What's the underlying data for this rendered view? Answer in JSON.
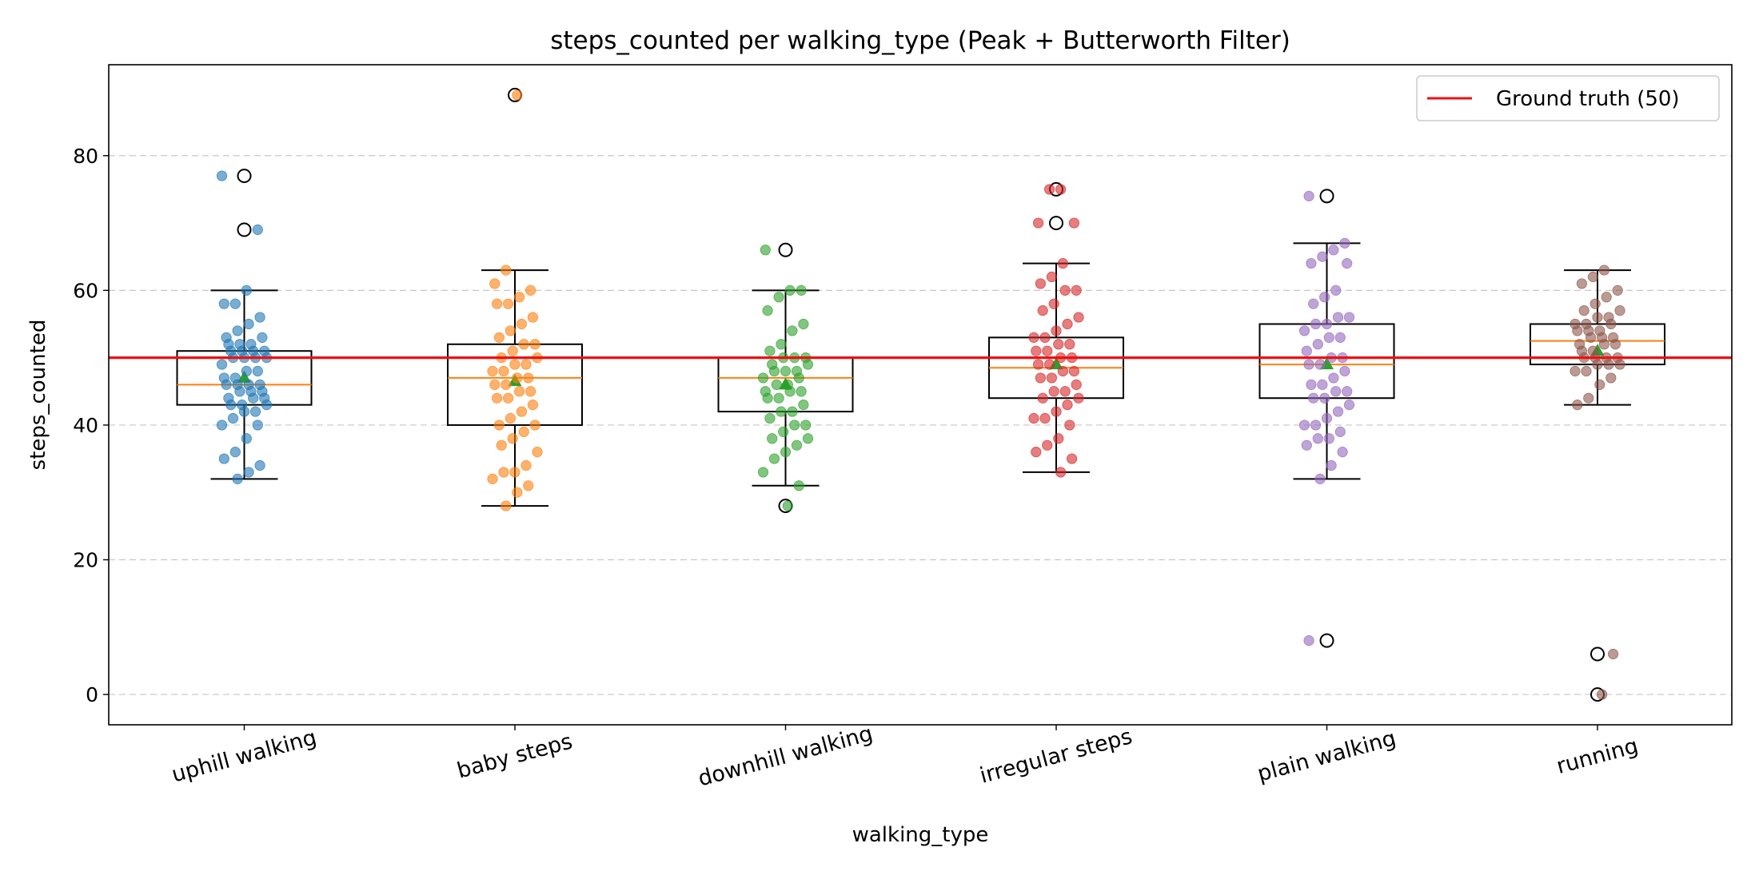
{
  "chart_data": {
    "type": "box",
    "title": "steps_counted per walking_type (Peak + Butterworth Filter)",
    "xlabel": "walking_type",
    "ylabel": "steps_counted",
    "ylim": [
      -4.5,
      93.5
    ],
    "yticks": [
      0,
      20,
      40,
      60,
      80
    ],
    "grid": "horizontal dashed",
    "legend": {
      "position": "top-right",
      "entries": [
        {
          "label": "Ground truth (50)",
          "color": "#ee1111"
        }
      ]
    },
    "reference_line": {
      "value": 50,
      "label": "Ground truth (50)",
      "color": "#ee1111"
    },
    "categories": [
      "uphill walking",
      "baby steps",
      "downhill walking",
      "irregular steps",
      "plain walking",
      "running"
    ],
    "series": [
      {
        "category": "uphill walking",
        "color": "#1f77b4",
        "q1": 43,
        "median": 46,
        "q3": 51,
        "whisker_low": 32,
        "whisker_high": 60,
        "mean": 47,
        "outliers": [
          77,
          69
        ],
        "points": [
          77,
          69,
          60,
          58,
          58,
          56,
          55,
          54,
          53,
          53,
          52,
          52,
          52,
          51,
          51,
          51,
          51,
          50,
          50,
          50,
          50,
          49,
          48,
          48,
          47,
          47,
          46,
          46,
          46,
          46,
          45,
          45,
          45,
          44,
          44,
          44,
          43,
          43,
          43,
          42,
          42,
          41,
          40,
          40,
          38,
          36,
          35,
          34,
          33,
          32
        ]
      },
      {
        "category": "baby steps",
        "color": "#ff7f0e",
        "q1": 40,
        "median": 47,
        "q3": 52,
        "whisker_low": 28,
        "whisker_high": 63,
        "mean": 46.5,
        "outliers": [
          89
        ],
        "points": [
          89,
          63,
          61,
          60,
          59,
          58,
          58,
          56,
          55,
          54,
          53,
          52,
          52,
          51,
          50,
          50,
          49,
          49,
          48,
          48,
          47,
          47,
          46,
          46,
          45,
          45,
          44,
          44,
          43,
          42,
          41,
          40,
          40,
          39,
          38,
          37,
          36,
          34,
          33,
          33,
          32,
          31,
          30,
          28
        ]
      },
      {
        "category": "downhill walking",
        "color": "#2ca02c",
        "q1": 42,
        "median": 47,
        "q3": 50,
        "whisker_low": 31,
        "whisker_high": 60,
        "mean": 46,
        "outliers": [
          66,
          28
        ],
        "points": [
          66,
          60,
          60,
          59,
          57,
          55,
          54,
          52,
          51,
          50,
          50,
          50,
          49,
          49,
          48,
          48,
          48,
          47,
          47,
          46,
          46,
          45,
          45,
          45,
          44,
          44,
          43,
          42,
          42,
          41,
          40,
          40,
          39,
          38,
          38,
          37,
          36,
          35,
          33,
          31,
          28
        ]
      },
      {
        "category": "irregular steps",
        "color": "#d62728",
        "q1": 44,
        "median": 48.5,
        "q3": 53,
        "whisker_low": 33,
        "whisker_high": 64,
        "mean": 49,
        "outliers": [
          75,
          70
        ],
        "points": [
          75,
          75,
          70,
          70,
          64,
          62,
          61,
          60,
          60,
          58,
          57,
          56,
          55,
          54,
          53,
          53,
          52,
          52,
          51,
          51,
          50,
          50,
          49,
          49,
          48,
          48,
          47,
          47,
          46,
          45,
          45,
          44,
          44,
          43,
          42,
          41,
          41,
          40,
          38,
          37,
          36,
          35,
          33
        ]
      },
      {
        "category": "plain walking",
        "color": "#9467bd",
        "q1": 44,
        "median": 49,
        "q3": 55,
        "whisker_low": 32,
        "whisker_high": 67,
        "mean": 49,
        "outliers": [
          74,
          8
        ],
        "points": [
          74,
          67,
          66,
          65,
          64,
          64,
          60,
          59,
          58,
          56,
          56,
          55,
          55,
          54,
          53,
          53,
          52,
          51,
          50,
          50,
          49,
          49,
          48,
          47,
          46,
          46,
          45,
          45,
          44,
          44,
          43,
          42,
          41,
          40,
          40,
          39,
          38,
          38,
          37,
          36,
          34,
          32,
          8
        ]
      },
      {
        "category": "running",
        "color": "#8c564b",
        "q1": 49,
        "median": 52.5,
        "q3": 55,
        "whisker_low": 43,
        "whisker_high": 63,
        "mean": 51,
        "outliers": [
          6,
          0
        ],
        "points": [
          63,
          62,
          61,
          60,
          59,
          58,
          57,
          57,
          56,
          56,
          55,
          55,
          55,
          54,
          54,
          54,
          53,
          53,
          53,
          52,
          52,
          52,
          51,
          51,
          50,
          50,
          50,
          50,
          49,
          49,
          49,
          48,
          48,
          47,
          46,
          44,
          43,
          6,
          0
        ]
      }
    ]
  }
}
